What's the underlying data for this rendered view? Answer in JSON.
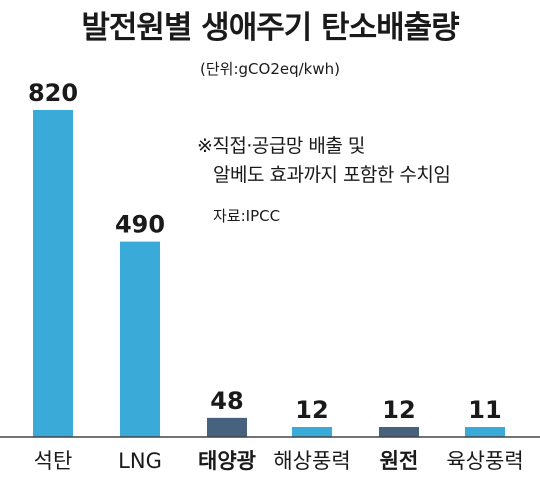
{
  "chart_data": {
    "type": "bar",
    "title": "발전원별 생애주기 탄소배출량",
    "unit_label": "(단위:gCO2eq/kwh)",
    "note_lines": [
      "※직접·공급망 배출 및",
      "알베도 효과까지 포함한 수치임"
    ],
    "source": "자료:IPCC",
    "categories": [
      "석탄",
      "LNG",
      "태양광",
      "해상풍력",
      "원전",
      "육상풍력"
    ],
    "values": [
      820,
      490,
      48,
      12,
      12,
      11
    ],
    "value_labels": [
      "820",
      "490",
      "48",
      "12",
      "12",
      "11"
    ],
    "bold_categories": [
      "태양광",
      "원전"
    ],
    "colors": {
      "light": "#3aaad8",
      "dark": "#46627f"
    },
    "bar_colors": [
      "#3aaad8",
      "#3aaad8",
      "#46627f",
      "#3aaad8",
      "#46627f",
      "#3aaad8"
    ],
    "ylim": [
      0,
      820
    ],
    "grid": false,
    "legend": "none"
  }
}
